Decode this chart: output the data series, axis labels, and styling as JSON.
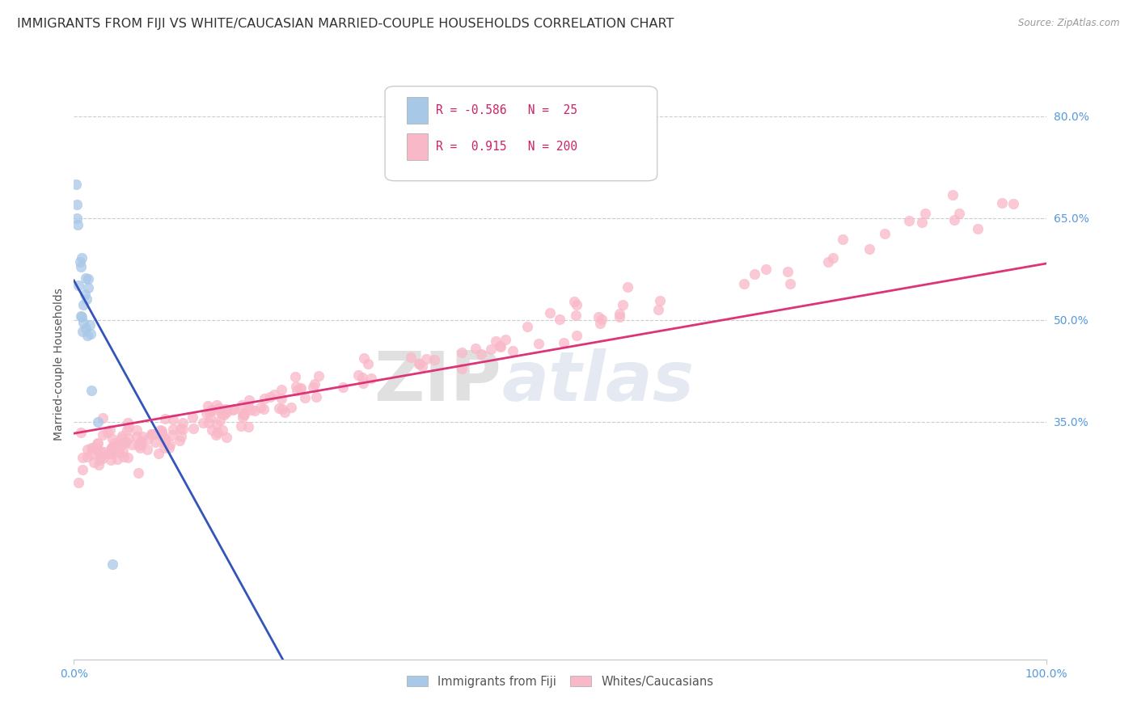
{
  "title": "IMMIGRANTS FROM FIJI VS WHITE/CAUCASIAN MARRIED-COUPLE HOUSEHOLDS CORRELATION CHART",
  "source": "Source: ZipAtlas.com",
  "ylabel": "Married-couple Households",
  "background_color": "#ffffff",
  "fiji_color": "#a8c8e8",
  "white_color": "#f9b8c8",
  "fiji_line_color": "#3355bb",
  "white_line_color": "#dd3377",
  "fiji_R": -0.586,
  "fiji_N": 25,
  "white_R": 0.915,
  "white_N": 200,
  "fiji_line_x0": 0.0,
  "fiji_line_y0": 0.558,
  "fiji_line_x1": 0.215,
  "fiji_line_y1": 0.0,
  "white_line_x0": 0.0,
  "white_line_y0": 0.333,
  "white_line_x1": 1.0,
  "white_line_y1": 0.583,
  "ylim_min": 0.0,
  "ylim_max": 0.87,
  "xlim_min": 0.0,
  "xlim_max": 1.0,
  "ytick_vals": [
    0.35,
    0.5,
    0.65,
    0.8
  ],
  "ytick_labels": [
    "35.0%",
    "50.0%",
    "65.0%",
    "80.0%"
  ],
  "grid_color": "#cccccc",
  "tick_color": "#5599dd",
  "title_fontsize": 11.5,
  "tick_fontsize": 10,
  "ylabel_fontsize": 10,
  "marker_size": 80,
  "marker_alpha": 0.75,
  "watermark_color": "#d0d8e8",
  "watermark_zip_color": "#c8c8c8"
}
